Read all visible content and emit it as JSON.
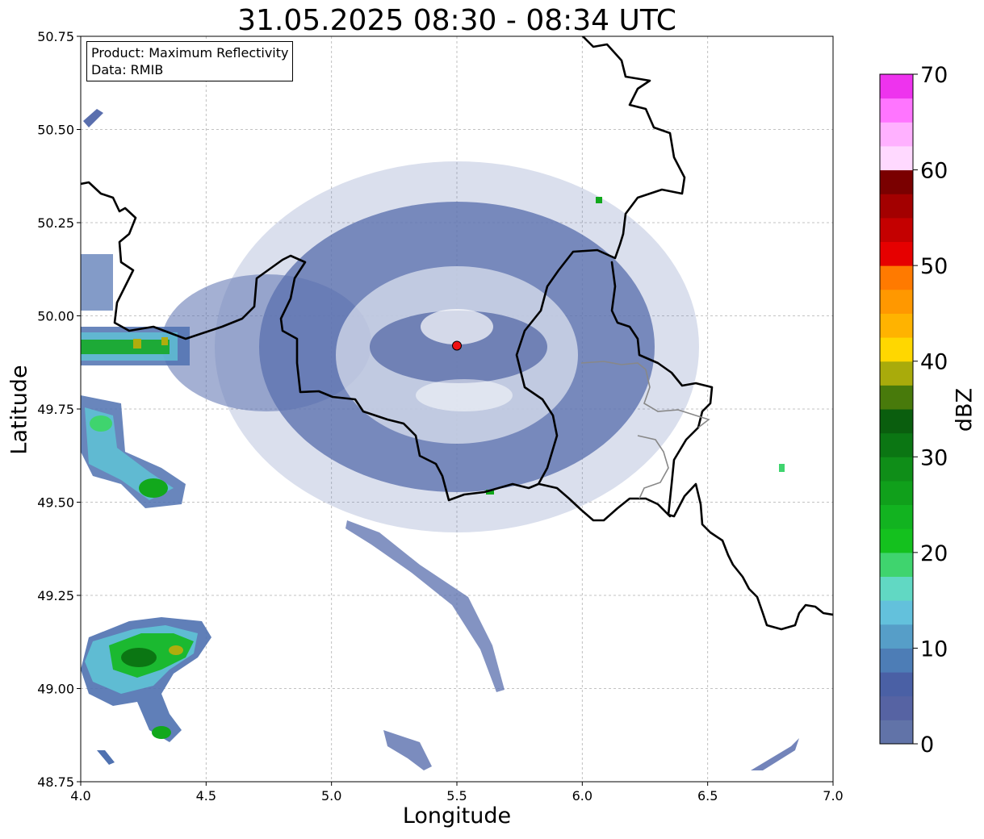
{
  "title": "31.05.2025 08:30 - 08:34 UTC",
  "xlabel": "Longitude",
  "ylabel": "Latitude",
  "info_box": {
    "product_line": "Product: Maximum Reflectivity",
    "data_line": "Data: RMIB"
  },
  "colorbar": {
    "label": "dBZ",
    "ticks": [
      "0",
      "10",
      "20",
      "30",
      "40",
      "50",
      "60",
      "70"
    ],
    "range": [
      0,
      70
    ],
    "colors": [
      "#6173a8",
      "#5663a3",
      "#4a60a5",
      "#4d7db6",
      "#569ec8",
      "#63c1dc",
      "#61d8c3",
      "#3fd46e",
      "#14c11e",
      "#12b320",
      "#10a01b",
      "#0f8e18",
      "#0b7613",
      "#0a5e0e",
      "#487a0b",
      "#a9ab0b",
      "#ffd700",
      "#ffb300",
      "#ff9800",
      "#ff7a00",
      "#e60000",
      "#c40000",
      "#a30000",
      "#7a0000",
      "#ffd9ff",
      "#ffb1ff",
      "#ff75ff",
      "#ee33ee"
    ]
  },
  "map": {
    "x_ticks": [
      "4.0",
      "4.5",
      "5.0",
      "5.5",
      "6.0",
      "6.5",
      "7.0"
    ],
    "y_ticks": [
      "50.75",
      "50.50",
      "50.25",
      "50.00",
      "49.75",
      "49.50",
      "49.25",
      "49.00",
      "48.75"
    ],
    "lon_range": [
      4.0,
      7.0
    ],
    "lat_range": [
      48.75,
      50.75
    ],
    "grid": true,
    "radar_site": {
      "lon": 5.5,
      "lat": 49.92,
      "color": "#ee1111"
    },
    "border_color": "#000000",
    "sub_border_color": "#888888"
  }
}
